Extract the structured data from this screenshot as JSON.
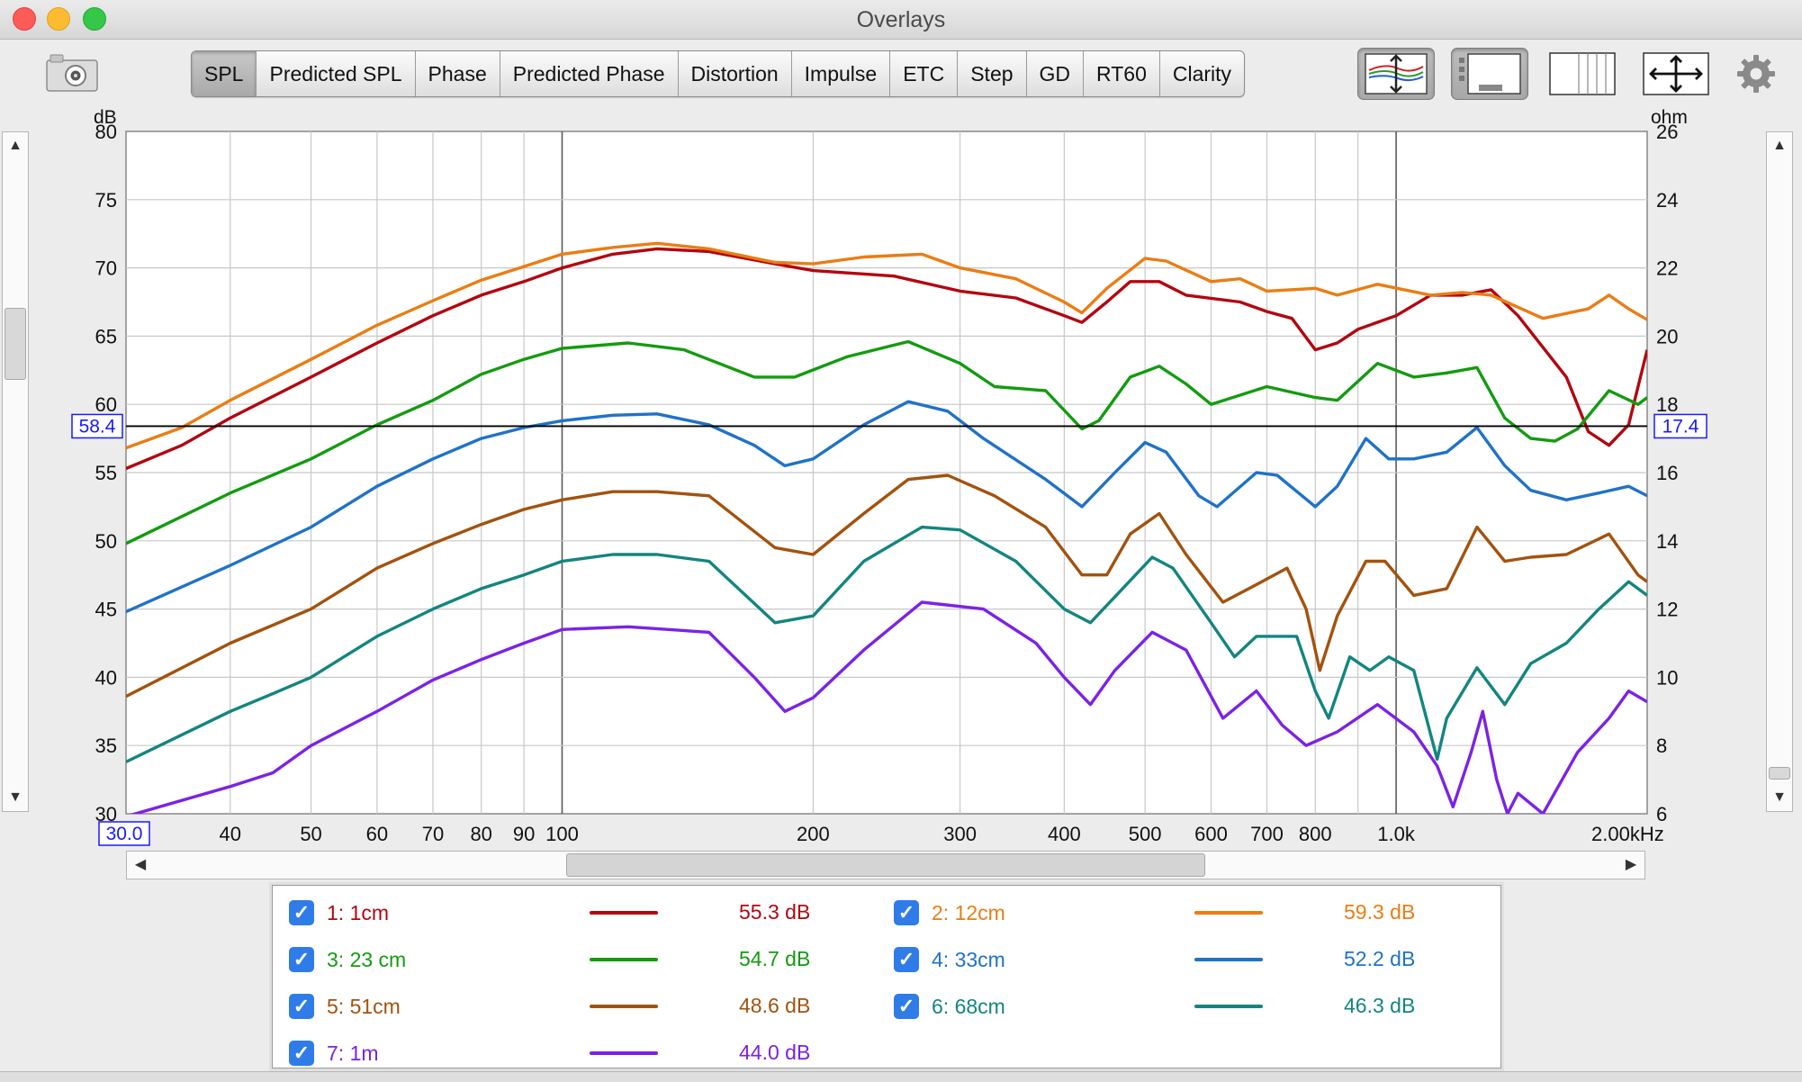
{
  "window": {
    "title": "Overlays"
  },
  "tabs": [
    {
      "label": "SPL",
      "active": true
    },
    {
      "label": "Predicted SPL",
      "active": false
    },
    {
      "label": "Phase",
      "active": false
    },
    {
      "label": "Predicted Phase",
      "active": false
    },
    {
      "label": "Distortion",
      "active": false
    },
    {
      "label": "Impulse",
      "active": false
    },
    {
      "label": "ETC",
      "active": false
    },
    {
      "label": "Step",
      "active": false
    },
    {
      "label": "GD",
      "active": false
    },
    {
      "label": "RT60",
      "active": false
    },
    {
      "label": "Clarity",
      "active": false
    }
  ],
  "toolbar_icons": [
    "camera-icon",
    "trace-arrange-icon",
    "controls-panel-icon",
    "grid-columns-icon",
    "move-arrows-icon",
    "gear-icon"
  ],
  "chart_data": {
    "type": "line",
    "xscale": "log",
    "xlim": [
      30,
      2000
    ],
    "xlabel": "Hz",
    "ylabel": "dB",
    "ylim": [
      30,
      80
    ],
    "y2label": "ohm",
    "y2lim": [
      6,
      26
    ],
    "x_ticks": [
      "30.0",
      "40",
      "50",
      "60",
      "70",
      "80",
      "90",
      "100",
      "200",
      "300",
      "400",
      "500",
      "600",
      "700",
      "800",
      "1.0k",
      "2.00kHz"
    ],
    "y_ticks": [
      "30",
      "35",
      "40",
      "45",
      "50",
      "55",
      "60",
      "65",
      "70",
      "75",
      "80"
    ],
    "y2_ticks": [
      "6",
      "8",
      "10",
      "12",
      "14",
      "16",
      "18",
      "20",
      "22",
      "24",
      "26"
    ],
    "cursor": {
      "y_left": "58.4",
      "y_right": "17.4",
      "x": "30.0"
    },
    "grid": true,
    "legend_position": "bottom",
    "series": [
      {
        "name": "1: 1cm",
        "value_label": "55.3 dB",
        "color": "#b3060f",
        "points": [
          [
            30,
            55.3
          ],
          [
            35,
            57
          ],
          [
            40,
            59
          ],
          [
            50,
            62
          ],
          [
            60,
            64.5
          ],
          [
            70,
            66.5
          ],
          [
            80,
            68
          ],
          [
            90,
            69
          ],
          [
            100,
            70
          ],
          [
            115,
            71
          ],
          [
            130,
            71.4
          ],
          [
            150,
            71.2
          ],
          [
            180,
            70.3
          ],
          [
            200,
            69.8
          ],
          [
            250,
            69.4
          ],
          [
            300,
            68.3
          ],
          [
            350,
            67.8
          ],
          [
            400,
            66.5
          ],
          [
            420,
            66
          ],
          [
            450,
            67.5
          ],
          [
            480,
            69
          ],
          [
            520,
            69
          ],
          [
            560,
            68
          ],
          [
            650,
            67.5
          ],
          [
            700,
            66.8
          ],
          [
            750,
            66.3
          ],
          [
            800,
            64
          ],
          [
            850,
            64.5
          ],
          [
            900,
            65.5
          ],
          [
            1000,
            66.5
          ],
          [
            1100,
            68
          ],
          [
            1200,
            68
          ],
          [
            1300,
            68.4
          ],
          [
            1400,
            66.5
          ],
          [
            1600,
            62
          ],
          [
            1700,
            58
          ],
          [
            1800,
            57
          ],
          [
            1900,
            58.5
          ],
          [
            2000,
            64
          ]
        ]
      },
      {
        "name": "2: 12cm",
        "value_label": "59.3 dB",
        "color": "#ea7d13",
        "points": [
          [
            30,
            56.8
          ],
          [
            35,
            58.3
          ],
          [
            40,
            60.3
          ],
          [
            50,
            63.3
          ],
          [
            60,
            65.8
          ],
          [
            70,
            67.6
          ],
          [
            80,
            69.1
          ],
          [
            90,
            70.1
          ],
          [
            100,
            71
          ],
          [
            115,
            71.5
          ],
          [
            130,
            71.8
          ],
          [
            150,
            71.4
          ],
          [
            180,
            70.4
          ],
          [
            200,
            70.3
          ],
          [
            230,
            70.8
          ],
          [
            270,
            71
          ],
          [
            300,
            70
          ],
          [
            350,
            69.2
          ],
          [
            400,
            67.5
          ],
          [
            420,
            66.7
          ],
          [
            450,
            68.5
          ],
          [
            500,
            70.7
          ],
          [
            530,
            70.5
          ],
          [
            600,
            69
          ],
          [
            650,
            69.2
          ],
          [
            700,
            68.3
          ],
          [
            800,
            68.5
          ],
          [
            850,
            68
          ],
          [
            950,
            68.8
          ],
          [
            1100,
            68
          ],
          [
            1200,
            68.2
          ],
          [
            1300,
            68
          ],
          [
            1500,
            66.3
          ],
          [
            1700,
            67
          ],
          [
            1800,
            68
          ],
          [
            1900,
            67
          ],
          [
            2000,
            66.2
          ]
        ]
      },
      {
        "name": "3: 23 cm",
        "value_label": "54.7 dB",
        "color": "#139b10",
        "points": [
          [
            30,
            49.8
          ],
          [
            40,
            53.5
          ],
          [
            50,
            56
          ],
          [
            60,
            58.5
          ],
          [
            70,
            60.3
          ],
          [
            80,
            62.2
          ],
          [
            90,
            63.3
          ],
          [
            100,
            64.1
          ],
          [
            120,
            64.5
          ],
          [
            140,
            64
          ],
          [
            170,
            62
          ],
          [
            190,
            62
          ],
          [
            220,
            63.5
          ],
          [
            260,
            64.6
          ],
          [
            300,
            63
          ],
          [
            330,
            61.3
          ],
          [
            380,
            61
          ],
          [
            420,
            58.2
          ],
          [
            440,
            58.8
          ],
          [
            480,
            62
          ],
          [
            520,
            62.8
          ],
          [
            560,
            61.5
          ],
          [
            600,
            60
          ],
          [
            700,
            61.3
          ],
          [
            800,
            60.5
          ],
          [
            850,
            60.3
          ],
          [
            950,
            63
          ],
          [
            1050,
            62
          ],
          [
            1150,
            62.3
          ],
          [
            1250,
            62.7
          ],
          [
            1350,
            59
          ],
          [
            1450,
            57.5
          ],
          [
            1550,
            57.3
          ],
          [
            1650,
            58.2
          ],
          [
            1800,
            61
          ],
          [
            1950,
            60
          ],
          [
            2000,
            60.5
          ]
        ]
      },
      {
        "name": "4: 33cm",
        "value_label": "52.2 dB",
        "color": "#1f72c8",
        "points": [
          [
            30,
            44.8
          ],
          [
            40,
            48.2
          ],
          [
            50,
            51
          ],
          [
            60,
            54
          ],
          [
            70,
            56
          ],
          [
            80,
            57.5
          ],
          [
            90,
            58.3
          ],
          [
            100,
            58.8
          ],
          [
            115,
            59.2
          ],
          [
            130,
            59.3
          ],
          [
            150,
            58.5
          ],
          [
            170,
            57
          ],
          [
            185,
            55.5
          ],
          [
            200,
            56
          ],
          [
            230,
            58.5
          ],
          [
            260,
            60.2
          ],
          [
            290,
            59.5
          ],
          [
            320,
            57.5
          ],
          [
            380,
            54.5
          ],
          [
            420,
            52.5
          ],
          [
            460,
            55
          ],
          [
            500,
            57.2
          ],
          [
            530,
            56.5
          ],
          [
            580,
            53.3
          ],
          [
            610,
            52.5
          ],
          [
            680,
            55
          ],
          [
            720,
            54.8
          ],
          [
            800,
            52.5
          ],
          [
            850,
            54
          ],
          [
            920,
            57.5
          ],
          [
            980,
            56
          ],
          [
            1050,
            56
          ],
          [
            1150,
            56.5
          ],
          [
            1250,
            58.3
          ],
          [
            1350,
            55.5
          ],
          [
            1450,
            53.7
          ],
          [
            1600,
            53
          ],
          [
            1750,
            53.5
          ],
          [
            1900,
            54
          ],
          [
            2000,
            53.3
          ]
        ]
      },
      {
        "name": "5: 51cm",
        "value_label": "48.6 dB",
        "color": "#a3520e",
        "points": [
          [
            30,
            38.6
          ],
          [
            40,
            42.5
          ],
          [
            50,
            45
          ],
          [
            60,
            48
          ],
          [
            70,
            49.8
          ],
          [
            80,
            51.2
          ],
          [
            90,
            52.3
          ],
          [
            100,
            53
          ],
          [
            115,
            53.6
          ],
          [
            130,
            53.6
          ],
          [
            150,
            53.3
          ],
          [
            180,
            49.5
          ],
          [
            200,
            49
          ],
          [
            230,
            52
          ],
          [
            260,
            54.5
          ],
          [
            290,
            54.8
          ],
          [
            330,
            53.3
          ],
          [
            380,
            51
          ],
          [
            420,
            47.5
          ],
          [
            450,
            47.5
          ],
          [
            480,
            50.5
          ],
          [
            520,
            52
          ],
          [
            560,
            49
          ],
          [
            620,
            45.5
          ],
          [
            690,
            47
          ],
          [
            740,
            48
          ],
          [
            780,
            45
          ],
          [
            810,
            40.5
          ],
          [
            850,
            44.5
          ],
          [
            920,
            48.5
          ],
          [
            970,
            48.5
          ],
          [
            1050,
            46
          ],
          [
            1150,
            46.5
          ],
          [
            1250,
            51
          ],
          [
            1350,
            48.5
          ],
          [
            1450,
            48.8
          ],
          [
            1600,
            49
          ],
          [
            1800,
            50.5
          ],
          [
            1950,
            47.5
          ],
          [
            2000,
            47
          ]
        ]
      },
      {
        "name": "6: 68cm",
        "value_label": "46.3 dB",
        "color": "#13857f",
        "points": [
          [
            30,
            33.8
          ],
          [
            40,
            37.5
          ],
          [
            45,
            38.8
          ],
          [
            50,
            40
          ],
          [
            60,
            43
          ],
          [
            70,
            45
          ],
          [
            80,
            46.5
          ],
          [
            90,
            47.5
          ],
          [
            100,
            48.5
          ],
          [
            115,
            49
          ],
          [
            130,
            49
          ],
          [
            150,
            48.5
          ],
          [
            180,
            44
          ],
          [
            200,
            44.5
          ],
          [
            230,
            48.5
          ],
          [
            270,
            51
          ],
          [
            300,
            50.8
          ],
          [
            350,
            48.5
          ],
          [
            400,
            45
          ],
          [
            430,
            44
          ],
          [
            470,
            46.5
          ],
          [
            510,
            48.8
          ],
          [
            540,
            48
          ],
          [
            600,
            44
          ],
          [
            640,
            41.5
          ],
          [
            680,
            43
          ],
          [
            760,
            43
          ],
          [
            800,
            39
          ],
          [
            830,
            37
          ],
          [
            880,
            41.5
          ],
          [
            930,
            40.5
          ],
          [
            980,
            41.5
          ],
          [
            1050,
            40.5
          ],
          [
            1120,
            34
          ],
          [
            1150,
            37
          ],
          [
            1250,
            40.7
          ],
          [
            1350,
            38
          ],
          [
            1450,
            41
          ],
          [
            1600,
            42.5
          ],
          [
            1750,
            45
          ],
          [
            1900,
            47
          ],
          [
            2000,
            46
          ]
        ]
      },
      {
        "name": "7: 1m",
        "value_label": "44.0 dB",
        "color": "#7b22e6",
        "points": [
          [
            30,
            29.8
          ],
          [
            40,
            32
          ],
          [
            45,
            33
          ],
          [
            50,
            35
          ],
          [
            60,
            37.5
          ],
          [
            70,
            39.8
          ],
          [
            80,
            41.3
          ],
          [
            90,
            42.5
          ],
          [
            100,
            43.5
          ],
          [
            120,
            43.7
          ],
          [
            150,
            43.3
          ],
          [
            170,
            40
          ],
          [
            185,
            37.5
          ],
          [
            200,
            38.5
          ],
          [
            230,
            42
          ],
          [
            270,
            45.5
          ],
          [
            320,
            45
          ],
          [
            370,
            42.5
          ],
          [
            400,
            40
          ],
          [
            430,
            38
          ],
          [
            460,
            40.5
          ],
          [
            510,
            43.3
          ],
          [
            560,
            42
          ],
          [
            620,
            37
          ],
          [
            680,
            39
          ],
          [
            730,
            36.5
          ],
          [
            780,
            35
          ],
          [
            850,
            36
          ],
          [
            950,
            38
          ],
          [
            1050,
            36
          ],
          [
            1120,
            33.5
          ],
          [
            1170,
            30.5
          ],
          [
            1230,
            34.5
          ],
          [
            1270,
            37.5
          ],
          [
            1320,
            32.5
          ],
          [
            1360,
            30
          ],
          [
            1400,
            31.5
          ],
          [
            1500,
            30
          ],
          [
            1650,
            34.5
          ],
          [
            1800,
            37
          ],
          [
            1900,
            39
          ],
          [
            2000,
            38.2
          ]
        ]
      }
    ]
  }
}
